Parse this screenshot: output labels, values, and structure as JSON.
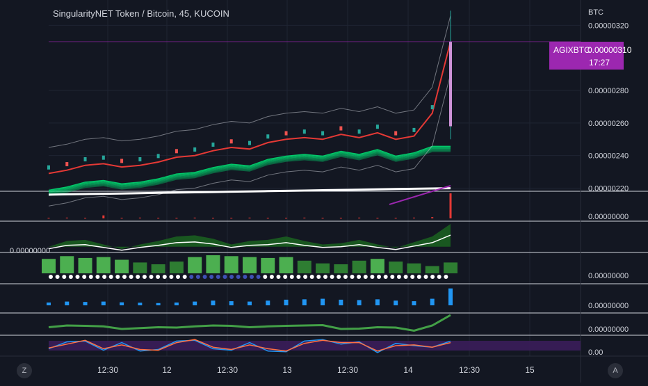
{
  "header": {
    "title": "SingularityNET Token / Bitcoin, 45, KUCOIN"
  },
  "price_tag": {
    "symbol": "AGIXBTC",
    "price": "0.00000310",
    "countdown": "17:27",
    "color": "#9c27b0"
  },
  "controls": {
    "left_label": "Z",
    "right_label": "A"
  },
  "colors": {
    "background": "#131722",
    "grid": "#1f2433",
    "ema_fast": "#e53935",
    "ribbon": "#00e676",
    "bands": "#b2b5be",
    "long_ma": "#ffffff",
    "oscillator_bg": "#3b1d5a"
  },
  "chart_data": [
    {
      "type": "line",
      "pane": "price",
      "unit": "BTC",
      "ylim": [
        2.185e-06,
        3.33e-06
      ],
      "y_ticks": [
        "0.00000320",
        "0.00000280",
        "0.00000260",
        "0.00000240",
        "0.00000220"
      ],
      "y_tick_values": [
        3.2e-06,
        2.8e-06,
        2.6e-06,
        2.4e-06,
        2.2e-06
      ],
      "x_ticks": [
        "12:30",
        "12",
        "12:30",
        "13",
        "12:30",
        "14",
        "12:30",
        "15"
      ],
      "series": [
        {
          "values": [
            2.29e-06,
            2.31e-06,
            2.34e-06,
            2.35e-06,
            2.33e-06,
            2.34e-06,
            2.36e-06,
            2.39e-06,
            2.4e-06,
            2.43e-06,
            2.45e-06,
            2.44e-06,
            2.48e-06,
            2.5e-06,
            2.51e-06,
            2.5e-06,
            2.53e-06,
            2.51e-06,
            2.54e-06,
            2.5e-06,
            2.52e-06,
            2.66e-06,
            3.1e-06
          ]
        }
      ],
      "last_price": 3.1e-06
    },
    {
      "type": "bar",
      "pane": "indicator-1",
      "y_ticks": [
        "0.00000000"
      ],
      "values": [
        0.02,
        0.03,
        0.02,
        0.12,
        0.02,
        0.03,
        0.02,
        0.02,
        0.03,
        0.02,
        0.02,
        0.03,
        0.02,
        0.02,
        0.03,
        0.02,
        0.02,
        0.03,
        0.02,
        0.02,
        0.03,
        0.05,
        1.0
      ]
    },
    {
      "type": "area",
      "pane": "indicator-2",
      "y_ticks": [
        "0.00000000"
      ],
      "values": [
        0.0,
        0.25,
        0.3,
        0.1,
        -0.1,
        0.1,
        0.25,
        0.45,
        0.5,
        0.35,
        0.1,
        0.25,
        0.3,
        0.45,
        0.25,
        0.1,
        0.15,
        0.3,
        0.1,
        -0.05,
        0.2,
        0.45,
        1.0
      ]
    },
    {
      "type": "bar",
      "pane": "indicator-3",
      "y_ticks": [
        "0.00000000"
      ],
      "values": [
        0.8,
        0.95,
        0.85,
        0.9,
        0.75,
        0.6,
        0.5,
        0.65,
        0.9,
        1.0,
        0.95,
        0.9,
        0.85,
        0.9,
        0.7,
        0.55,
        0.5,
        0.7,
        0.8,
        0.65,
        0.55,
        0.4,
        0.6
      ]
    },
    {
      "type": "bar",
      "pane": "indicator-4",
      "y_ticks": [
        "0.00000000"
      ],
      "values": [
        0.15,
        0.2,
        0.18,
        0.2,
        0.16,
        0.14,
        0.12,
        0.15,
        0.2,
        0.25,
        0.22,
        0.2,
        0.25,
        0.3,
        0.32,
        0.35,
        0.3,
        0.28,
        0.32,
        0.25,
        0.22,
        0.35,
        0.9
      ]
    },
    {
      "type": "line",
      "pane": "indicator-5",
      "y_ticks": [
        "0.00000000"
      ],
      "values": [
        0.3,
        0.4,
        0.38,
        0.35,
        0.2,
        0.25,
        0.3,
        0.28,
        0.35,
        0.4,
        0.38,
        0.3,
        0.35,
        0.38,
        0.4,
        0.42,
        0.2,
        0.22,
        0.3,
        0.28,
        0.1,
        0.4,
        1.0
      ]
    },
    {
      "type": "line",
      "pane": "stochastic",
      "y_ticks": [
        "0.00"
      ],
      "series": [
        {
          "values": [
            0.3,
            0.75,
            0.8,
            0.2,
            0.7,
            0.15,
            0.25,
            0.8,
            0.85,
            0.3,
            0.2,
            0.7,
            0.15,
            0.1,
            0.8,
            0.9,
            0.6,
            0.75,
            0.05,
            0.65,
            0.5,
            0.4,
            0.8
          ]
        },
        {
          "values": [
            0.35,
            0.6,
            0.85,
            0.3,
            0.55,
            0.25,
            0.2,
            0.7,
            0.9,
            0.4,
            0.25,
            0.55,
            0.3,
            0.15,
            0.65,
            0.85,
            0.7,
            0.7,
            0.15,
            0.5,
            0.55,
            0.4,
            0.7
          ]
        }
      ]
    }
  ]
}
